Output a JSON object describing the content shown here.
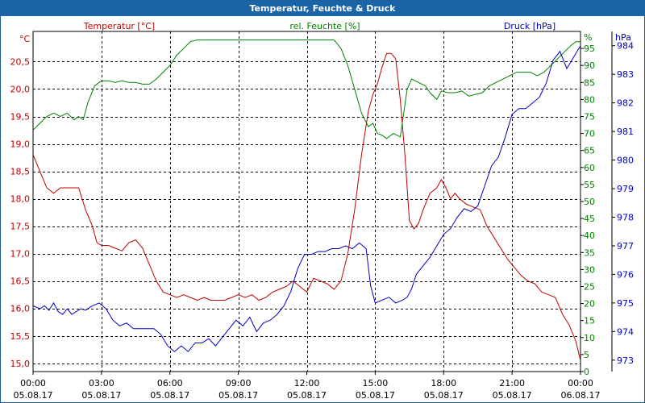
{
  "window": {
    "title": "Temperatur, Feuchte & Druck"
  },
  "chart_data": {
    "type": "line",
    "title": "Temperatur, Feuchte & Druck",
    "axes": {
      "temperature": {
        "label": "Temperatur [°C]",
        "unit_label": "°C",
        "ylim": [
          14.85,
          21.05
        ],
        "ticks": [
          "15,0",
          "15,5",
          "16,0",
          "16,5",
          "17,0",
          "17,5",
          "18,0",
          "18,5",
          "19,0",
          "19,5",
          "20,0",
          "20,5"
        ],
        "tick_values": [
          15.0,
          15.5,
          16.0,
          16.5,
          17.0,
          17.5,
          18.0,
          18.5,
          19.0,
          19.5,
          20.0,
          20.5
        ],
        "color": "#c00000"
      },
      "humidity": {
        "label": "rel. Feuchte [%]",
        "unit_label": "%",
        "ylim": [
          0,
          100
        ],
        "ticks": [
          "0",
          "5",
          "10",
          "15",
          "20",
          "25",
          "30",
          "35",
          "40",
          "45",
          "50",
          "55",
          "60",
          "65",
          "70",
          "75",
          "80",
          "85",
          "90",
          "95"
        ],
        "tick_values": [
          0,
          5,
          10,
          15,
          20,
          25,
          30,
          35,
          40,
          45,
          50,
          55,
          60,
          65,
          70,
          75,
          80,
          85,
          90,
          95
        ],
        "color": "#008000"
      },
      "pressure": {
        "label": "Druck [hPa]",
        "unit_label": "hPa",
        "ylim": [
          972.6,
          984.5
        ],
        "ticks": [
          "973",
          "974",
          "975",
          "976",
          "977",
          "978",
          "979",
          "980",
          "981",
          "982",
          "983",
          "984"
        ],
        "tick_values": [
          973,
          974,
          975,
          976,
          977,
          978,
          979,
          980,
          981,
          982,
          983,
          984
        ],
        "color": "#0000c0"
      }
    },
    "x_ticks": [
      {
        "time": "00:00",
        "date": "05.08.17",
        "hour": 0
      },
      {
        "time": "03:00",
        "date": "05.08.17",
        "hour": 3
      },
      {
        "time": "06:00",
        "date": "05.08.17",
        "hour": 6
      },
      {
        "time": "09:00",
        "date": "05.08.17",
        "hour": 9
      },
      {
        "time": "12:00",
        "date": "05.08.17",
        "hour": 12
      },
      {
        "time": "15:00",
        "date": "05.08.17",
        "hour": 15
      },
      {
        "time": "18:00",
        "date": "05.08.17",
        "hour": 18
      },
      {
        "time": "21:00",
        "date": "05.08.17",
        "hour": 21
      },
      {
        "time": "00:00",
        "date": "06.08.17",
        "hour": 24
      }
    ],
    "xlim": [
      0,
      24
    ],
    "grid": true,
    "series": [
      {
        "name": "Temperatur [°C]",
        "axis": "temperature",
        "color": "#c00000",
        "points": [
          [
            0,
            18.8
          ],
          [
            0.3,
            18.5
          ],
          [
            0.6,
            18.2
          ],
          [
            0.9,
            18.1
          ],
          [
            1.2,
            18.2
          ],
          [
            1.5,
            18.2
          ],
          [
            1.8,
            18.2
          ],
          [
            2.0,
            18.2
          ],
          [
            2.3,
            17.8
          ],
          [
            2.6,
            17.5
          ],
          [
            2.8,
            17.2
          ],
          [
            3.0,
            17.15
          ],
          [
            3.3,
            17.15
          ],
          [
            3.6,
            17.1
          ],
          [
            3.9,
            17.05
          ],
          [
            4.2,
            17.2
          ],
          [
            4.5,
            17.25
          ],
          [
            4.8,
            17.1
          ],
          [
            5.1,
            16.8
          ],
          [
            5.4,
            16.5
          ],
          [
            5.7,
            16.3
          ],
          [
            6.0,
            16.25
          ],
          [
            6.3,
            16.2
          ],
          [
            6.6,
            16.25
          ],
          [
            6.9,
            16.2
          ],
          [
            7.2,
            16.15
          ],
          [
            7.5,
            16.2
          ],
          [
            7.8,
            16.15
          ],
          [
            8.1,
            16.15
          ],
          [
            8.4,
            16.15
          ],
          [
            8.7,
            16.2
          ],
          [
            9.0,
            16.25
          ],
          [
            9.3,
            16.2
          ],
          [
            9.6,
            16.25
          ],
          [
            9.9,
            16.15
          ],
          [
            10.2,
            16.2
          ],
          [
            10.5,
            16.3
          ],
          [
            10.8,
            16.35
          ],
          [
            11.1,
            16.4
          ],
          [
            11.4,
            16.5
          ],
          [
            11.7,
            16.4
          ],
          [
            12.0,
            16.3
          ],
          [
            12.3,
            16.55
          ],
          [
            12.6,
            16.5
          ],
          [
            12.9,
            16.45
          ],
          [
            13.2,
            16.35
          ],
          [
            13.5,
            16.5
          ],
          [
            13.8,
            17.0
          ],
          [
            14.1,
            17.8
          ],
          [
            14.4,
            18.8
          ],
          [
            14.7,
            19.6
          ],
          [
            14.9,
            19.9
          ],
          [
            15.1,
            20.1
          ],
          [
            15.3,
            20.4
          ],
          [
            15.5,
            20.65
          ],
          [
            15.7,
            20.65
          ],
          [
            15.9,
            20.55
          ],
          [
            16.1,
            19.8
          ],
          [
            16.3,
            18.8
          ],
          [
            16.5,
            17.6
          ],
          [
            16.7,
            17.45
          ],
          [
            16.9,
            17.55
          ],
          [
            17.1,
            17.8
          ],
          [
            17.4,
            18.1
          ],
          [
            17.7,
            18.2
          ],
          [
            17.9,
            18.35
          ],
          [
            18.1,
            18.2
          ],
          [
            18.3,
            18.0
          ],
          [
            18.5,
            18.1
          ],
          [
            18.7,
            18.0
          ],
          [
            19.0,
            17.9
          ],
          [
            19.3,
            17.85
          ],
          [
            19.6,
            17.8
          ],
          [
            19.9,
            17.5
          ],
          [
            20.2,
            17.3
          ],
          [
            20.5,
            17.1
          ],
          [
            20.8,
            16.9
          ],
          [
            21.1,
            16.75
          ],
          [
            21.4,
            16.6
          ],
          [
            21.7,
            16.5
          ],
          [
            22.0,
            16.45
          ],
          [
            22.3,
            16.3
          ],
          [
            22.6,
            16.25
          ],
          [
            22.9,
            16.2
          ],
          [
            23.2,
            15.9
          ],
          [
            23.5,
            15.7
          ],
          [
            23.8,
            15.4
          ],
          [
            24.0,
            15.05
          ]
        ]
      },
      {
        "name": "rel. Feuchte [%]",
        "axis": "humidity",
        "color": "#008000",
        "points": [
          [
            0,
            71
          ],
          [
            0.3,
            73
          ],
          [
            0.6,
            75
          ],
          [
            0.9,
            76
          ],
          [
            1.2,
            75
          ],
          [
            1.5,
            76
          ],
          [
            1.8,
            74
          ],
          [
            2.0,
            75
          ],
          [
            2.2,
            74
          ],
          [
            2.4,
            79
          ],
          [
            2.7,
            84
          ],
          [
            3.0,
            85.5
          ],
          [
            3.3,
            85.5
          ],
          [
            3.6,
            85
          ],
          [
            3.9,
            85.5
          ],
          [
            4.2,
            85
          ],
          [
            4.5,
            85
          ],
          [
            4.8,
            84.5
          ],
          [
            5.1,
            84.5
          ],
          [
            5.4,
            86
          ],
          [
            5.7,
            88
          ],
          [
            6.0,
            90
          ],
          [
            6.3,
            93
          ],
          [
            6.6,
            95
          ],
          [
            6.9,
            97
          ],
          [
            7.2,
            97.5
          ],
          [
            7.5,
            97.5
          ],
          [
            8.0,
            97.5
          ],
          [
            9.0,
            97.5
          ],
          [
            10.0,
            97.5
          ],
          [
            11.0,
            97.5
          ],
          [
            12.0,
            97.5
          ],
          [
            13.0,
            97.5
          ],
          [
            13.2,
            97.5
          ],
          [
            13.5,
            95
          ],
          [
            13.8,
            90
          ],
          [
            14.1,
            83
          ],
          [
            14.4,
            76
          ],
          [
            14.7,
            72
          ],
          [
            14.9,
            73
          ],
          [
            15.1,
            70
          ],
          [
            15.3,
            69.5
          ],
          [
            15.5,
            68.5
          ],
          [
            15.8,
            70
          ],
          [
            16.1,
            69
          ],
          [
            16.4,
            83
          ],
          [
            16.6,
            86
          ],
          [
            16.9,
            85
          ],
          [
            17.2,
            84
          ],
          [
            17.4,
            82
          ],
          [
            17.7,
            80
          ],
          [
            17.9,
            82.5
          ],
          [
            18.2,
            82
          ],
          [
            18.5,
            82
          ],
          [
            18.8,
            82.5
          ],
          [
            19.1,
            81
          ],
          [
            19.4,
            81.5
          ],
          [
            19.7,
            82
          ],
          [
            20.0,
            84
          ],
          [
            20.3,
            85
          ],
          [
            20.6,
            86
          ],
          [
            20.9,
            87
          ],
          [
            21.2,
            88
          ],
          [
            21.5,
            88
          ],
          [
            21.8,
            88
          ],
          [
            22.1,
            87
          ],
          [
            22.4,
            88
          ],
          [
            22.7,
            90
          ],
          [
            23.0,
            92
          ],
          [
            23.3,
            94
          ],
          [
            23.6,
            96
          ],
          [
            23.8,
            97
          ],
          [
            24.0,
            97
          ]
        ]
      },
      {
        "name": "Druck [hPa]",
        "axis": "pressure",
        "color": "#0000c0",
        "points": [
          [
            0,
            974.9
          ],
          [
            0.3,
            974.8
          ],
          [
            0.5,
            974.9
          ],
          [
            0.7,
            974.75
          ],
          [
            0.9,
            975.0
          ],
          [
            1.1,
            974.7
          ],
          [
            1.3,
            974.6
          ],
          [
            1.5,
            974.8
          ],
          [
            1.7,
            974.6
          ],
          [
            1.9,
            974.7
          ],
          [
            2.1,
            974.8
          ],
          [
            2.3,
            974.75
          ],
          [
            2.6,
            974.9
          ],
          [
            2.9,
            975.0
          ],
          [
            3.2,
            974.8
          ],
          [
            3.5,
            974.4
          ],
          [
            3.8,
            974.2
          ],
          [
            4.1,
            974.3
          ],
          [
            4.4,
            974.1
          ],
          [
            4.7,
            974.1
          ],
          [
            5.0,
            974.1
          ],
          [
            5.3,
            974.1
          ],
          [
            5.6,
            973.9
          ],
          [
            5.9,
            973.5
          ],
          [
            6.2,
            973.3
          ],
          [
            6.5,
            973.5
          ],
          [
            6.8,
            973.3
          ],
          [
            7.1,
            973.6
          ],
          [
            7.4,
            973.6
          ],
          [
            7.7,
            973.75
          ],
          [
            8.0,
            973.5
          ],
          [
            8.3,
            973.8
          ],
          [
            8.6,
            974.1
          ],
          [
            8.9,
            974.4
          ],
          [
            9.2,
            974.2
          ],
          [
            9.5,
            974.5
          ],
          [
            9.8,
            974.0
          ],
          [
            10.1,
            974.3
          ],
          [
            10.4,
            974.4
          ],
          [
            10.7,
            974.6
          ],
          [
            11.0,
            974.9
          ],
          [
            11.3,
            975.4
          ],
          [
            11.6,
            976.2
          ],
          [
            11.9,
            976.7
          ],
          [
            12.2,
            976.7
          ],
          [
            12.5,
            976.8
          ],
          [
            12.8,
            976.8
          ],
          [
            13.1,
            976.9
          ],
          [
            13.4,
            976.9
          ],
          [
            13.7,
            977.0
          ],
          [
            14.0,
            976.9
          ],
          [
            14.3,
            977.1
          ],
          [
            14.6,
            976.9
          ],
          [
            14.8,
            975.6
          ],
          [
            15.0,
            975.0
          ],
          [
            15.3,
            975.1
          ],
          [
            15.6,
            975.2
          ],
          [
            15.9,
            975.0
          ],
          [
            16.2,
            975.1
          ],
          [
            16.4,
            975.2
          ],
          [
            16.6,
            975.5
          ],
          [
            16.8,
            976.0
          ],
          [
            17.1,
            976.3
          ],
          [
            17.4,
            976.6
          ],
          [
            17.7,
            977.0
          ],
          [
            18.0,
            977.4
          ],
          [
            18.3,
            977.6
          ],
          [
            18.6,
            978.0
          ],
          [
            18.9,
            978.3
          ],
          [
            19.2,
            978.2
          ],
          [
            19.5,
            978.4
          ],
          [
            19.8,
            979.1
          ],
          [
            20.1,
            979.8
          ],
          [
            20.4,
            980.1
          ],
          [
            20.7,
            980.8
          ],
          [
            21.0,
            981.6
          ],
          [
            21.3,
            981.8
          ],
          [
            21.6,
            981.8
          ],
          [
            21.9,
            982.0
          ],
          [
            22.2,
            982.2
          ],
          [
            22.5,
            982.7
          ],
          [
            22.8,
            983.5
          ],
          [
            23.1,
            983.8
          ],
          [
            23.4,
            983.2
          ],
          [
            23.7,
            983.6
          ],
          [
            24.0,
            984.0
          ]
        ]
      }
    ]
  }
}
